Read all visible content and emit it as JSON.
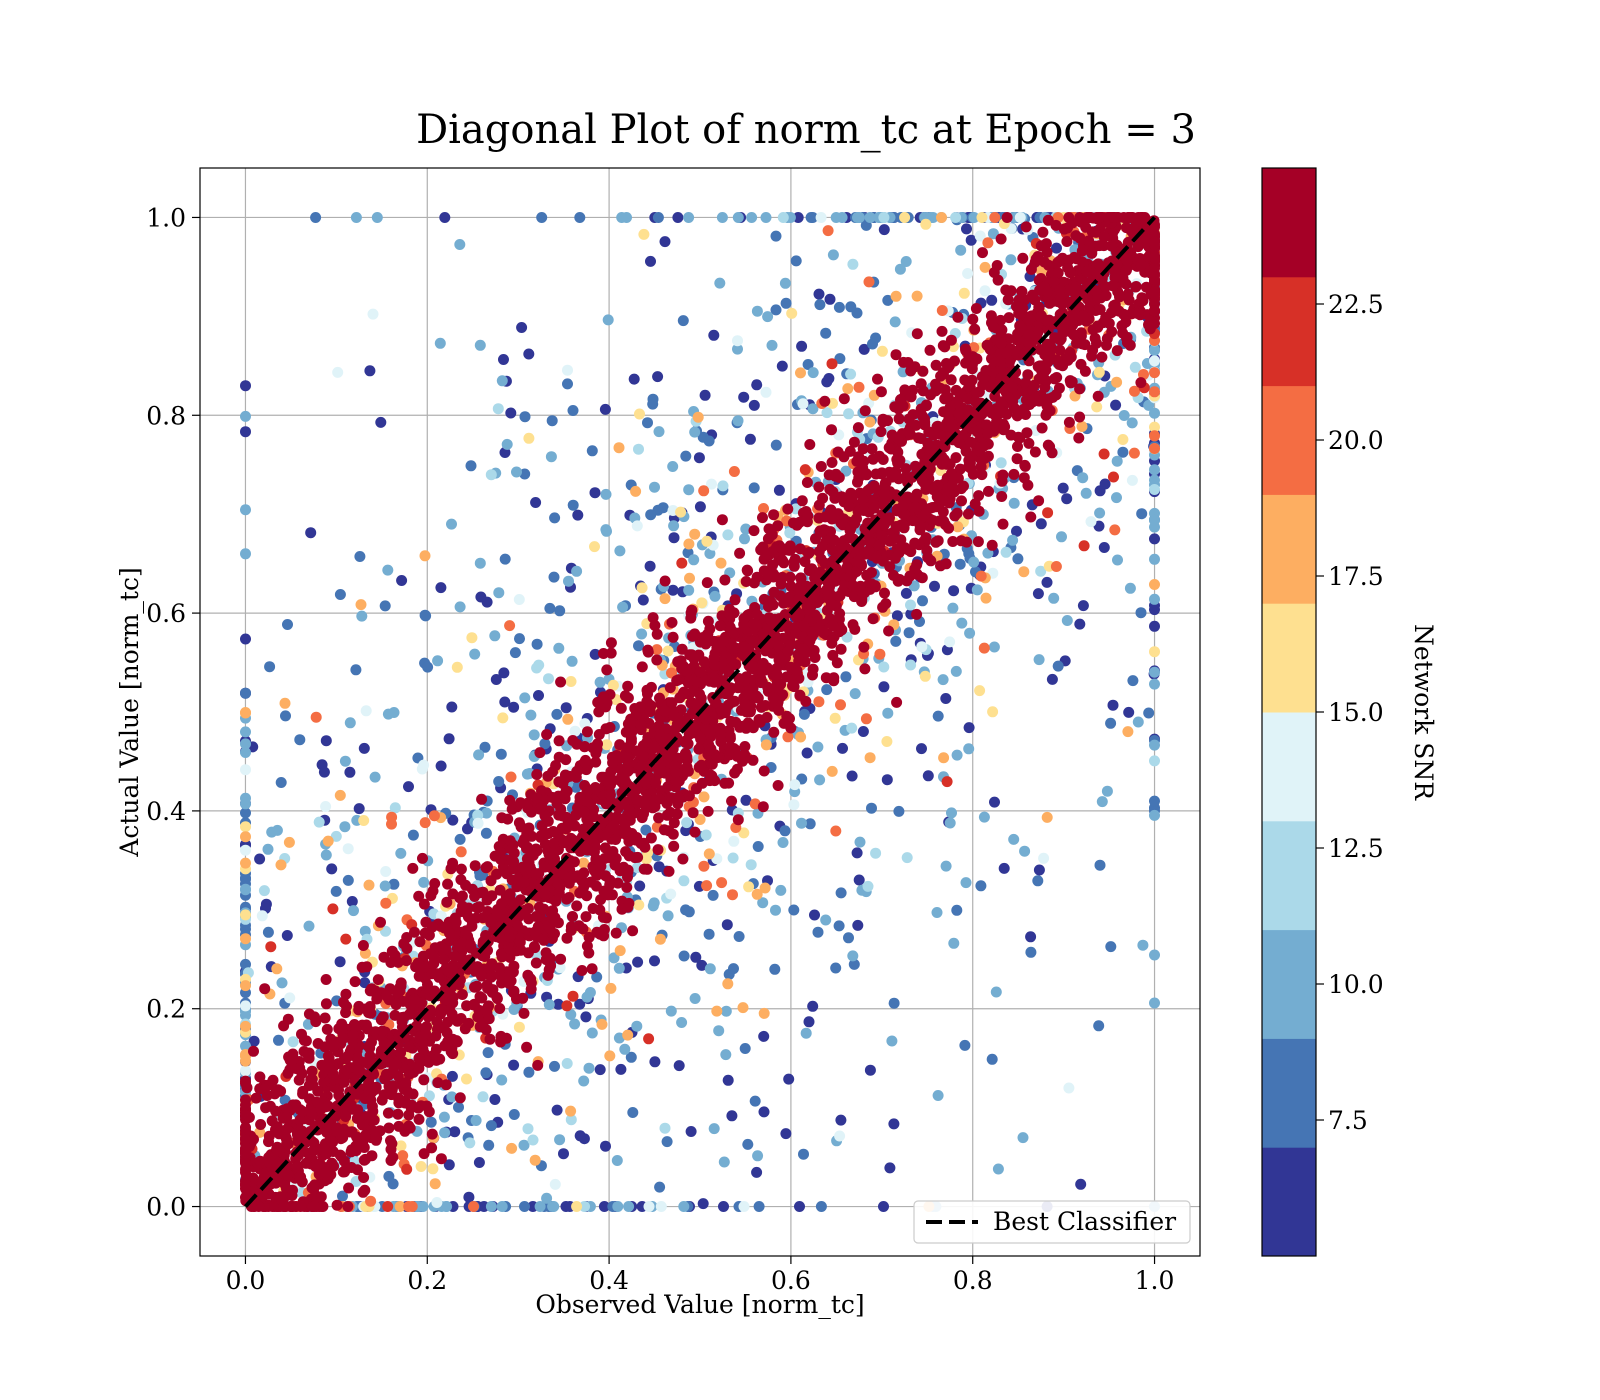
{
  "chart_data": {
    "type": "scatter",
    "title": "Diagonal Plot of norm_tc at Epoch = 3",
    "xlabel": "Observed Value [norm_tc]",
    "ylabel": "Actual Value [norm_tc]",
    "xlim": [
      -0.05,
      1.05
    ],
    "ylim": [
      -0.05,
      1.05
    ],
    "x_ticks": [
      "0.0",
      "0.2",
      "0.4",
      "0.6",
      "0.8",
      "1.0"
    ],
    "y_ticks": [
      "0.0",
      "0.2",
      "0.4",
      "0.6",
      "0.8",
      "1.0"
    ],
    "grid": true,
    "legend": {
      "position": "bottom-right",
      "entries": [
        "Best Classifier"
      ]
    },
    "reference_line": {
      "name": "Best Classifier",
      "style": "dashed",
      "color": "#000000",
      "from": [
        0,
        0
      ],
      "to": [
        1,
        1
      ]
    },
    "point_description": "Dense band of high-SNR points along the diagonal with low-SNR points scattered away from it; points clipped to [0, 1] on both axes",
    "colorbar": {
      "label": "Network SNR",
      "range": [
        5.0,
        25.0
      ],
      "ticks": [
        "7.5",
        "10.0",
        "12.5",
        "15.0",
        "17.5",
        "20.0",
        "22.5"
      ],
      "tick_values": [
        7.5,
        10.0,
        12.5,
        15.0,
        17.5,
        20.0,
        22.5
      ],
      "colors": [
        "#313695",
        "#4575b4",
        "#74add1",
        "#abd9e9",
        "#e0f3f8",
        "#fee090",
        "#fdae61",
        "#f46d43",
        "#d73027",
        "#a50026"
      ]
    }
  }
}
